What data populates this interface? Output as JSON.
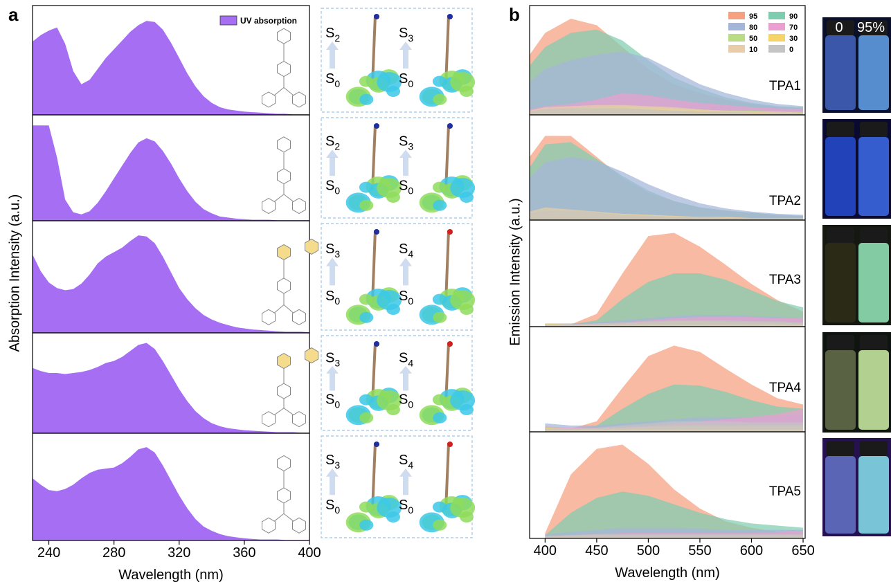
{
  "chart_data": [
    {
      "type": "area",
      "label": "a",
      "x_label": "Wavelength (nm)",
      "y_label": "Absorption Intensity (a.u.)",
      "xlim": [
        230,
        400
      ],
      "xticks": [
        240,
        280,
        320,
        360,
        400
      ],
      "ylim": [
        0,
        100
      ],
      "x": [
        230,
        235,
        240,
        245,
        250,
        255,
        260,
        265,
        270,
        275,
        280,
        285,
        290,
        295,
        300,
        305,
        310,
        315,
        320,
        325,
        330,
        335,
        340,
        345,
        350,
        355,
        360,
        365,
        370,
        375,
        380,
        385,
        390,
        395,
        400
      ],
      "series": [
        {
          "name": "UV absorption",
          "color": "#a66ff3",
          "values": [
            [
              67,
              73,
              77,
              80,
              65,
              40,
              28,
              32,
              42,
              52,
              60,
              68,
              76,
              82,
              86,
              85,
              78,
              66,
              52,
              38,
              26,
              17,
              11,
              7,
              5,
              4,
              3,
              2.5,
              2,
              1.5,
              1,
              1,
              0.5,
              0.5,
              0.5
            ],
            [
              90,
              90,
              90,
              60,
              20,
              8,
              6,
              9,
              17,
              28,
              40,
              52,
              64,
              74,
              78,
              75,
              66,
              54,
              40,
              28,
              18,
              11,
              7,
              4,
              3,
              2,
              1.5,
              1,
              1,
              1,
              0.5,
              0.5,
              0.5,
              0.5,
              0.5
            ],
            [
              70,
              55,
              45,
              40,
              38,
              39,
              44,
              52,
              62,
              68,
              72,
              76,
              82,
              87,
              86,
              80,
              68,
              54,
              40,
              30,
              22,
              16,
              12,
              9,
              7,
              5,
              4,
              3,
              2.5,
              2,
              1.5,
              1,
              1,
              1,
              0.5
            ],
            [
              65,
              62,
              60,
              60,
              59,
              60,
              61,
              63,
              66,
              70,
              72,
              76,
              82,
              88,
              90,
              84,
              72,
              58,
              44,
              32,
              22,
              15,
              10,
              7,
              5,
              4,
              3,
              2.5,
              2,
              1.5,
              1,
              1,
              1,
              0.5,
              0.5
            ],
            [
              58,
              52,
              47,
              46,
              48,
              52,
              58,
              63,
              66,
              67,
              68,
              72,
              78,
              85,
              87,
              82,
              70,
              56,
              42,
              30,
              20,
              13,
              9,
              6,
              4,
              3,
              2,
              1.5,
              1,
              1,
              1,
              0.5,
              0.5,
              0.5,
              0.5
            ]
          ]
        }
      ],
      "state_symbol": "S",
      "transitions": [
        [
          {
            "upper": "2",
            "lower": "0"
          },
          {
            "upper": "3",
            "lower": "0"
          }
        ],
        [
          {
            "upper": "2",
            "lower": "0"
          },
          {
            "upper": "3",
            "lower": "0"
          }
        ],
        [
          {
            "upper": "3",
            "lower": "0"
          },
          {
            "upper": "4",
            "lower": "0"
          }
        ],
        [
          {
            "upper": "3",
            "lower": "0"
          },
          {
            "upper": "4",
            "lower": "0"
          }
        ],
        [
          {
            "upper": "3",
            "lower": "0"
          },
          {
            "upper": "4",
            "lower": "0"
          }
        ]
      ]
    },
    {
      "type": "area",
      "label": "b",
      "x_label": "Wavelength (nm)",
      "y_label": "Emission Intensity (a.u.)",
      "xlim": [
        385,
        652
      ],
      "xticks": [
        400,
        450,
        500,
        550,
        600,
        650
      ],
      "ylim": [
        0,
        100
      ],
      "x": [
        385,
        400,
        425,
        450,
        475,
        500,
        525,
        550,
        575,
        600,
        625,
        650
      ],
      "subplot_labels": [
        "TPA1",
        "TPA2",
        "TPA3",
        "TPA4",
        "TPA5"
      ],
      "vial_labels": [
        "0",
        "95%"
      ],
      "series": [
        {
          "name": "95",
          "color": "#f5a07e",
          "values": [
            [
              55,
              75,
              88,
              82,
              62,
              42,
              28,
              20,
              14,
              10,
              7,
              6
            ],
            [
              60,
              80,
              80,
              60,
              40,
              26,
              18,
              12,
              9,
              7,
              5,
              4
            ],
            [
              null,
              2,
              2,
              12,
              50,
              85,
              88,
              75,
              58,
              40,
              25,
              14
            ],
            [
              null,
              3,
              3,
              10,
              42,
              72,
              82,
              76,
              60,
              45,
              32,
              26
            ],
            [
              null,
              5,
              60,
              84,
              88,
              70,
              46,
              28,
              16,
              10,
              6,
              4
            ]
          ]
        },
        {
          "name": "90",
          "color": "#7fcdb0",
          "values": [
            [
              45,
              62,
              75,
              78,
              68,
              50,
              34,
              24,
              16,
              11,
              8,
              7
            ],
            [
              50,
              72,
              74,
              58,
              42,
              28,
              18,
              12,
              9,
              7,
              5,
              4
            ],
            [
              null,
              2,
              2,
              6,
              26,
              42,
              50,
              50,
              44,
              34,
              24,
              18
            ],
            [
              null,
              3,
              3,
              6,
              22,
              36,
              45,
              44,
              38,
              30,
              24,
              22
            ],
            [
              null,
              3,
              24,
              38,
              44,
              40,
              32,
              24,
              18,
              14,
              12,
              10
            ]
          ]
        },
        {
          "name": "80",
          "color": "#a3b5d9",
          "values": [
            [
              30,
              42,
              50,
              55,
              58,
              52,
              40,
              28,
              20,
              14,
              10,
              8
            ],
            [
              40,
              55,
              60,
              56,
              46,
              34,
              24,
              16,
              11,
              8,
              6,
              5
            ],
            [
              null,
              3,
              3,
              4,
              6,
              8,
              10,
              11,
              11,
              10,
              9,
              8
            ],
            [
              null,
              8,
              6,
              6,
              8,
              10,
              12,
              14,
              14,
              14,
              15,
              16
            ],
            [
              null,
              4,
              6,
              8,
              10,
              10,
              10,
              9,
              8,
              8,
              8,
              8
            ]
          ]
        },
        {
          "name": "70",
          "color": "#ea9fd0",
          "values": [
            [
              5,
              8,
              10,
              14,
              20,
              18,
              14,
              11,
              9,
              7,
              6,
              5
            ],
            [
              6,
              8,
              8,
              7,
              6,
              5,
              4,
              3,
              3,
              2,
              2,
              2
            ],
            [
              null,
              2,
              2,
              3,
              4,
              6,
              8,
              9,
              9,
              9,
              8,
              8
            ],
            [
              null,
              5,
              4,
              4,
              5,
              6,
              8,
              10,
              12,
              14,
              17,
              22
            ],
            [
              null,
              2,
              3,
              4,
              5,
              5,
              5,
              5,
              5,
              5,
              6,
              7
            ]
          ]
        },
        {
          "name": "50",
          "color": "#b9dc85",
          "values": [
            [
              3,
              5,
              6,
              7,
              8,
              7,
              6,
              5,
              4,
              4,
              3,
              3
            ],
            [
              6,
              9,
              8,
              7,
              6,
              5,
              4,
              3,
              3,
              2,
              2,
              2
            ],
            [
              null,
              1,
              1,
              2,
              3,
              4,
              5,
              5,
              5,
              4,
              4,
              3
            ],
            [
              null,
              4,
              3,
              3,
              3,
              4,
              5,
              6,
              6,
              6,
              6,
              6
            ],
            [
              null,
              2,
              2,
              2,
              2,
              2,
              2,
              2,
              2,
              2,
              2,
              2
            ]
          ]
        },
        {
          "name": "30",
          "color": "#f5d46a",
          "values": [
            [
              2,
              4,
              5,
              6,
              6,
              5,
              5,
              4,
              3,
              3,
              2,
              2
            ],
            [
              5,
              7,
              7,
              6,
              5,
              4,
              3,
              3,
              2,
              2,
              2,
              2
            ],
            [
              null,
              3,
              2,
              2,
              2,
              2,
              2,
              2,
              2,
              2,
              2,
              2
            ],
            [
              null,
              4,
              3,
              3,
              3,
              3,
              3,
              3,
              3,
              3,
              3,
              3
            ],
            [
              null,
              1,
              1,
              1,
              1,
              1,
              1,
              1,
              1,
              1,
              1,
              1
            ]
          ]
        },
        {
          "name": "10",
          "color": "#e9cda9",
          "values": [
            [
              4,
              7,
              8,
              9,
              9,
              8,
              7,
              5,
              4,
              3,
              3,
              2
            ],
            [
              8,
              12,
              10,
              8,
              6,
              5,
              4,
              3,
              3,
              2,
              2,
              2
            ],
            [
              null,
              2,
              2,
              2,
              3,
              4,
              5,
              5,
              4,
              4,
              3,
              3
            ],
            [
              null,
              3,
              3,
              3,
              4,
              5,
              6,
              6,
              6,
              6,
              6,
              6
            ],
            [
              null,
              2,
              3,
              3,
              3,
              3,
              3,
              3,
              3,
              3,
              3,
              3
            ]
          ]
        },
        {
          "name": "0",
          "color": "#c4c4c4",
          "values": [
            [
              3,
              5,
              6,
              6,
              6,
              5,
              4,
              3,
              3,
              2,
              2,
              2
            ],
            [
              6,
              9,
              8,
              7,
              5,
              4,
              3,
              3,
              2,
              2,
              2,
              2
            ],
            [
              null,
              2,
              2,
              3,
              4,
              5,
              6,
              6,
              6,
              5,
              5,
              4
            ],
            [
              null,
              3,
              3,
              4,
              6,
              8,
              10,
              10,
              10,
              9,
              9,
              9
            ],
            [
              null,
              2,
              3,
              4,
              4,
              4,
              4,
              4,
              4,
              4,
              4,
              4
            ]
          ]
        }
      ]
    }
  ]
}
